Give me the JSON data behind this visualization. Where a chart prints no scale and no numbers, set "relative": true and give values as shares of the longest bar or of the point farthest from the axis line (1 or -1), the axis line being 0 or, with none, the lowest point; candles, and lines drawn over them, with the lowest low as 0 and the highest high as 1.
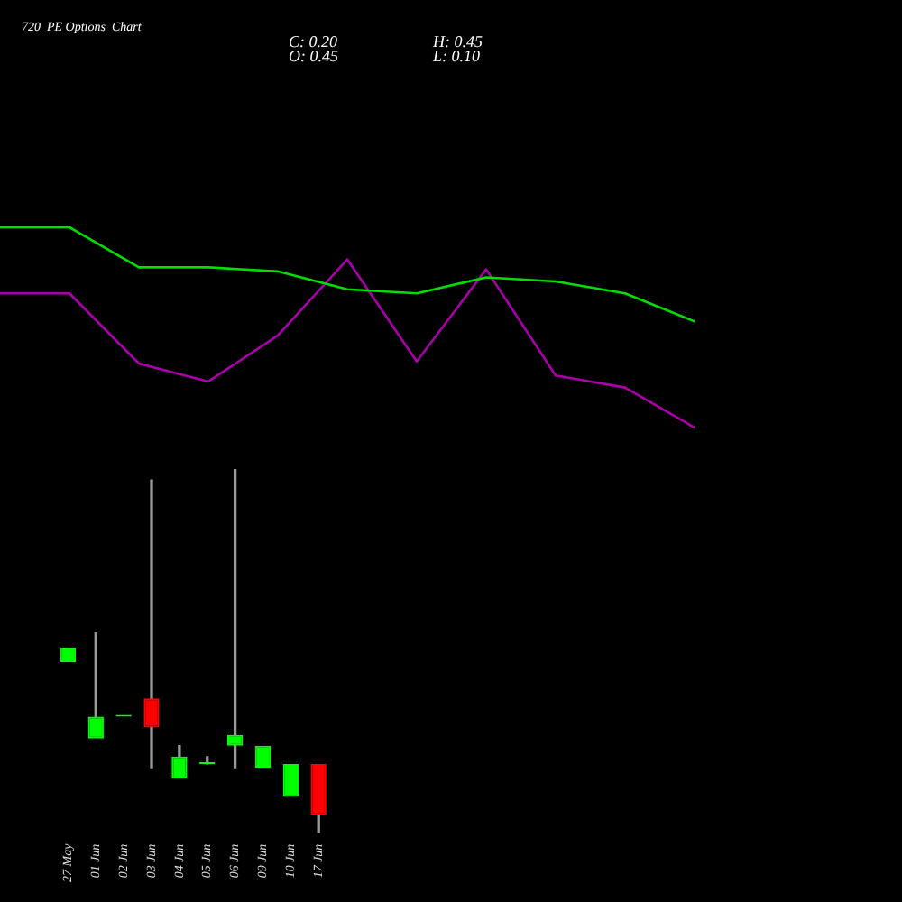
{
  "chart_data": [
    {
      "type": "line",
      "title": "720  PE Options  Chart",
      "annotations": [
        "C: 0.20",
        "O: 0.45",
        "H: 0.45",
        "L: 0.10"
      ],
      "relative": true,
      "tick_labels": false,
      "grid": false,
      "legend": false,
      "marker": "none",
      "categories": [
        null,
        null,
        null,
        null,
        null,
        null,
        null,
        null,
        null,
        null,
        null
      ],
      "series": [
        {
          "color": "#00dd00",
          "values": [
            1,
            1,
            0.8,
            0.8,
            0.78,
            0.69,
            0.67,
            0.75,
            0.73,
            0.67,
            0.53
          ]
        },
        {
          "color": "#aa00aa",
          "values": [
            0.67,
            0.67,
            0.32,
            0.23,
            0.46,
            0.84,
            0.33,
            0.79,
            0.26,
            0.2,
            0
          ]
        }
      ]
    },
    {
      "type": "candlestick",
      "relative": true,
      "tick_labels": "x",
      "grid": false,
      "legend": false,
      "categories": [
        "27 May",
        "01 Jun",
        "02 Jun",
        "03 Jun",
        "04 Jun",
        "05 Jun",
        "06 Jun",
        "09 Jun",
        "10 Jun",
        "17 Jun"
      ],
      "ohlc": [
        [
          0.47,
          0.51,
          0.47,
          0.51
        ],
        [
          0.26,
          0.55,
          0.26,
          0.32
        ],
        [
          0.32,
          0.32,
          0.32,
          0.32
        ],
        [
          0.37,
          0.97,
          0.18,
          0.29
        ],
        [
          0.15,
          0.24,
          0.15,
          0.21
        ],
        [
          0.19,
          0.21,
          0.19,
          0.19
        ],
        [
          0.24,
          1,
          0.18,
          0.27
        ],
        [
          0.18,
          0.24,
          0.18,
          0.24
        ],
        [
          0.1,
          0.19,
          0.1,
          0.19
        ],
        [
          0.19,
          0.19,
          0,
          0.05
        ]
      ],
      "colors": [
        "#00ff00",
        "#00ff00",
        "#00ff00",
        "#ff0000",
        "#00ff00",
        "#00ff00",
        "#00ff00",
        "#00ff00",
        "#00ff00",
        "#ff0000"
      ]
    }
  ]
}
